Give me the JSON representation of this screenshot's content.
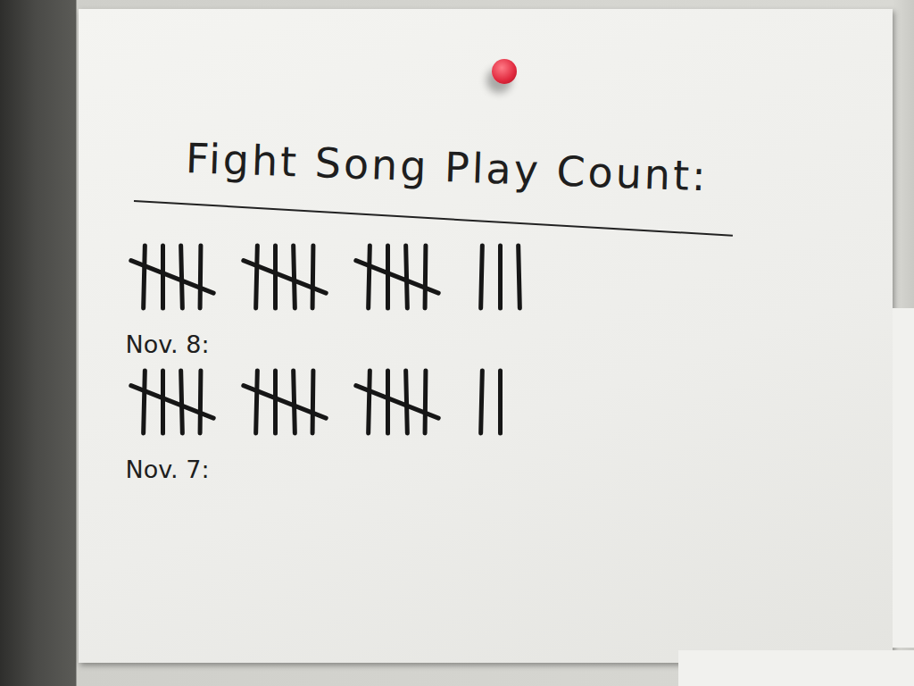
{
  "chart_data": {
    "type": "tally",
    "title": "Fight Song Play Count:",
    "categories": [
      "Nov. 7:",
      "Nov. 8:"
    ],
    "values": [
      17,
      18
    ],
    "tick_labels": false
  }
}
